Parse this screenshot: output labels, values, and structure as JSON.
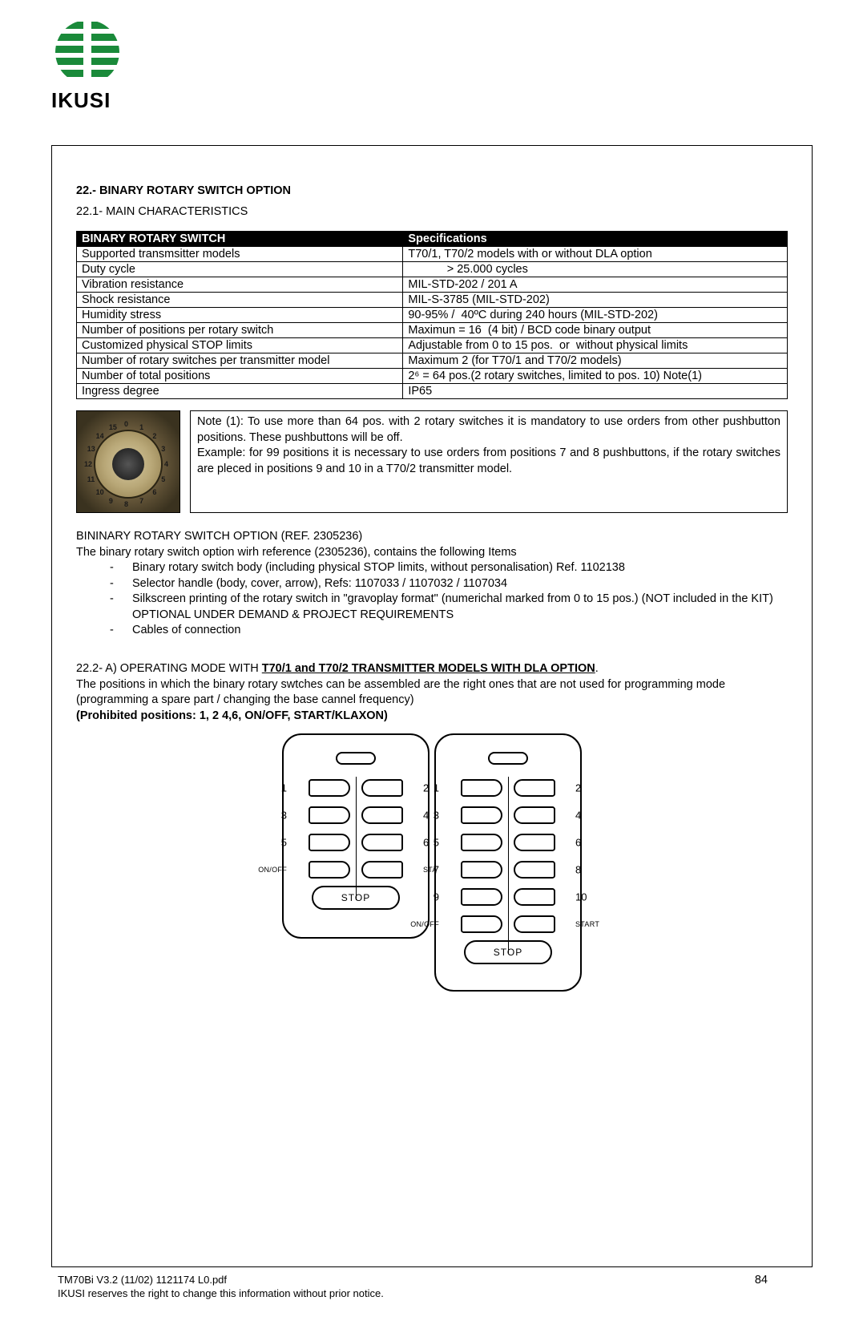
{
  "brand": {
    "name": "IKUSI",
    "logo_color": "#1a8a3a"
  },
  "section": {
    "number_title": "22.- BINARY ROTARY SWITCH OPTION",
    "sub1": "22.1- MAIN CHARACTERISTICS"
  },
  "table": {
    "header_left": "BINARY ROTARY SWITCH",
    "header_right": "Specifications",
    "rows": [
      [
        "Supported transmsitter models",
        "T70/1, T70/2 models with or without DLA option"
      ],
      [
        "Duty cycle",
        "            > 25.000 cycles"
      ],
      [
        "Vibration resistance",
        "MIL-STD-202 / 201 A"
      ],
      [
        "Shock resistance",
        "MIL-S-3785 (MIL-STD-202)"
      ],
      [
        "Humidity stress",
        "90-95% /  40ºC during 240 hours (MIL-STD-202)"
      ],
      [
        "Number of positions per rotary switch",
        "Maximun = 16  (4 bit) / BCD code binary output"
      ],
      [
        "Customized physical STOP limits",
        "Adjustable from 0 to 15 pos.  or  without physical limits"
      ],
      [
        "Number of rotary switches per transmitter model",
        "Maximum 2 (for T70/1 and T70/2 models)"
      ],
      [
        "Number of total positions",
        "2⁶ = 64 pos.(2 rotary switches, limited to pos. 10) Note(1)"
      ],
      [
        "Ingress degree",
        "IP65"
      ]
    ]
  },
  "note": {
    "text": "Note (1): To use more than 64 pos. with 2 rotary switches it is mandatory to use orders from other pushbutton positions. These pushbuttons will be off.\nExample: for 99 positions it is necessary to use orders from positions 7 and 8 pushbuttons, if the rotary switches are pleced in positions 9 and 10 in a T70/2 transmitter model.",
    "dial_numbers": [
      "0",
      "1",
      "2",
      "3",
      "4",
      "5",
      "6",
      "7",
      "8",
      "9",
      "10",
      "11",
      "12",
      "13",
      "14",
      "15"
    ]
  },
  "kit": {
    "heading": "BININARY ROTARY SWITCH OPTION (REF. 2305236)",
    "intro": "The binary rotary switch option wirh  reference  (2305236), contains the following Items",
    "items": [
      "Binary rotary switch body (including physical STOP limits, without personalisation) Ref. 1102138",
      "Selector handle (body, cover, arrow), Refs: 1107033 / 1107032 / 1107034",
      "Silkscreen printing of the rotary switch in \"gravoplay format\" (numerichal marked from 0 to 15 pos.) (NOT included in the KIT)\nOPTIONAL UNDER DEMAND & PROJECT REQUIREMENTS",
      "Cables of connection"
    ]
  },
  "opmode": {
    "prefix": "22.2- A) OPERATING MODE WITH ",
    "link": "T70/1 and T70/2 TRANSMITTER MODELS WITH DLA OPTION",
    "suffix": ".",
    "body": "The positions in which the binary rotary swtches can be assembled are the right ones that are not used for programming mode (programming a spare part / changing the base cannel frequency)",
    "prohibited": "(Prohibited positions: 1, 2 4,6, ON/OFF, START/KLAXON)"
  },
  "remotes": {
    "stop_label": "STOP",
    "left": {
      "rows": [
        [
          "1",
          "2"
        ],
        [
          "3",
          "4"
        ],
        [
          "5",
          "6"
        ],
        [
          "ON/OFF",
          "START"
        ]
      ]
    },
    "right": {
      "rows": [
        [
          "1",
          "2"
        ],
        [
          "3",
          "4"
        ],
        [
          "5",
          "6"
        ],
        [
          "7",
          "8"
        ],
        [
          "9",
          "10"
        ],
        [
          "ON/OFF",
          "START"
        ]
      ]
    }
  },
  "footer": {
    "line1": "TM70Bi  V3.2  (11/02)     1121174 L0.pdf",
    "line2": "IKUSI  reserves the right to change this information without  prior notice.",
    "page": "84"
  }
}
